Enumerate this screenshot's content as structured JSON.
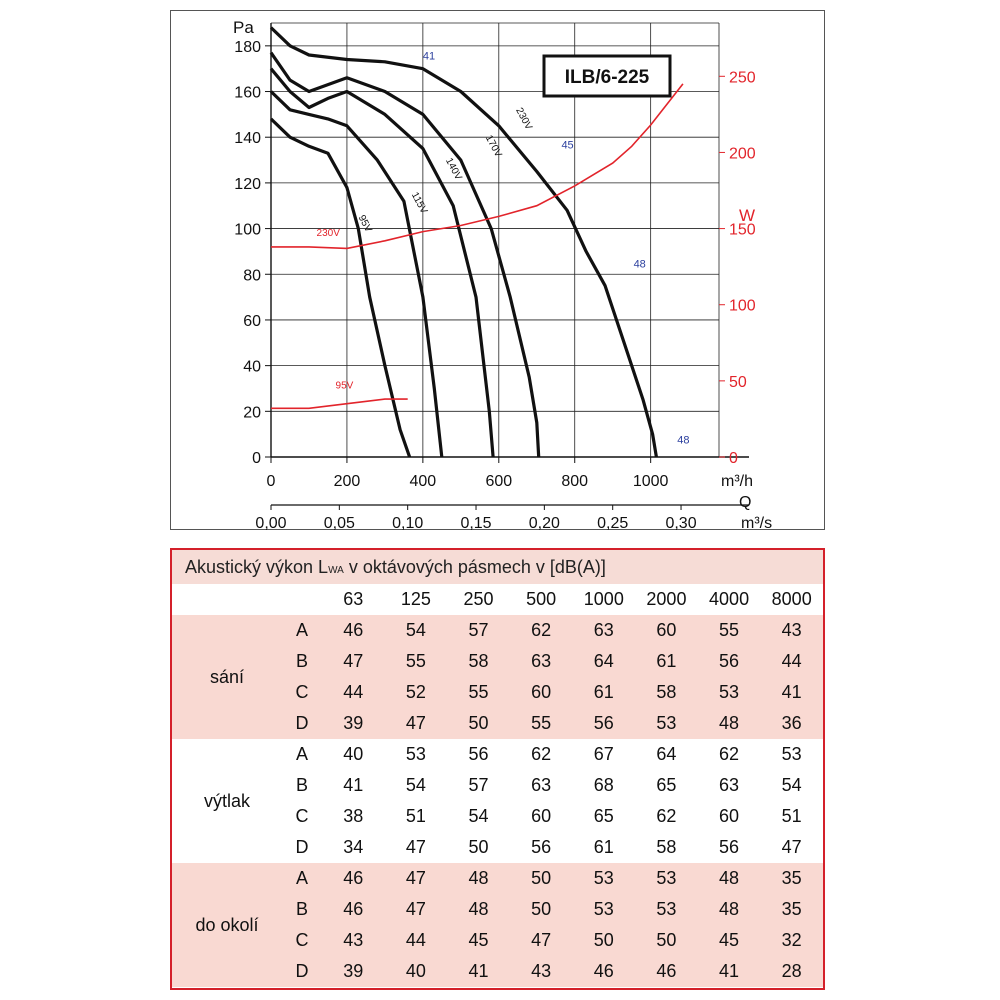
{
  "chart_data": {
    "type": "line",
    "model_label": "ILB/6-225",
    "y_left": {
      "label": "Pa",
      "ticks": [
        0,
        20,
        40,
        60,
        80,
        100,
        120,
        140,
        160,
        180
      ],
      "range": [
        0,
        190
      ]
    },
    "y_right": {
      "label": "W",
      "ticks": [
        0,
        50,
        100,
        150,
        200,
        250
      ],
      "range": [
        0,
        285
      ]
    },
    "x_flow": {
      "unit": "m³/h",
      "ticks": [
        0,
        200,
        400,
        600,
        800,
        1000
      ],
      "range": [
        0,
        1180
      ]
    },
    "x_flow_s": {
      "label": "Q",
      "unit": "m³/s",
      "ticks": [
        "0,00",
        "0,05",
        "0,10",
        "0,15",
        "0,20",
        "0,25",
        "0,30"
      ],
      "tick_values": [
        0,
        0.05,
        0.1,
        0.15,
        0.2,
        0.25,
        0.3
      ]
    },
    "pressure_series": [
      {
        "name": "95V",
        "points": [
          [
            0,
            148
          ],
          [
            50,
            140
          ],
          [
            100,
            136
          ],
          [
            150,
            133
          ],
          [
            200,
            118
          ],
          [
            230,
            100
          ],
          [
            260,
            70
          ],
          [
            300,
            40
          ],
          [
            340,
            12
          ],
          [
            365,
            0
          ]
        ],
        "label_at": [
          230,
          105
        ]
      },
      {
        "name": "115V",
        "points": [
          [
            0,
            160
          ],
          [
            50,
            152
          ],
          [
            100,
            150
          ],
          [
            150,
            148
          ],
          [
            200,
            145
          ],
          [
            280,
            130
          ],
          [
            350,
            112
          ],
          [
            400,
            70
          ],
          [
            430,
            30
          ],
          [
            450,
            0
          ]
        ],
        "label_at": [
          370,
          115
        ]
      },
      {
        "name": "140V",
        "points": [
          [
            0,
            170
          ],
          [
            50,
            160
          ],
          [
            100,
            153
          ],
          [
            150,
            157
          ],
          [
            200,
            160
          ],
          [
            300,
            150
          ],
          [
            400,
            135
          ],
          [
            480,
            110
          ],
          [
            540,
            70
          ],
          [
            575,
            20
          ],
          [
            585,
            0
          ]
        ],
        "label_at": [
          460,
          130
        ]
      },
      {
        "name": "170V",
        "points": [
          [
            0,
            177
          ],
          [
            50,
            165
          ],
          [
            100,
            160
          ],
          [
            200,
            166
          ],
          [
            300,
            160
          ],
          [
            400,
            150
          ],
          [
            500,
            130
          ],
          [
            580,
            100
          ],
          [
            630,
            70
          ],
          [
            680,
            35
          ],
          [
            700,
            15
          ],
          [
            705,
            0
          ]
        ],
        "label_at": [
          565,
          140
        ]
      },
      {
        "name": "230V",
        "points": [
          [
            0,
            188
          ],
          [
            50,
            180
          ],
          [
            100,
            176
          ],
          [
            200,
            174
          ],
          [
            300,
            173
          ],
          [
            400,
            170
          ],
          [
            500,
            160
          ],
          [
            600,
            145
          ],
          [
            700,
            125
          ],
          [
            780,
            108
          ],
          [
            830,
            90
          ],
          [
            880,
            75
          ],
          [
            930,
            50
          ],
          [
            980,
            25
          ],
          [
            1005,
            10
          ],
          [
            1015,
            0
          ]
        ],
        "label_at": [
          645,
          152
        ]
      }
    ],
    "power_series": [
      {
        "name": "230V",
        "points": [
          [
            0,
            138
          ],
          [
            100,
            138
          ],
          [
            200,
            137
          ],
          [
            300,
            142
          ],
          [
            400,
            148
          ],
          [
            500,
            152
          ],
          [
            600,
            158
          ],
          [
            700,
            165
          ],
          [
            800,
            178
          ],
          [
            900,
            193
          ],
          [
            950,
            204
          ],
          [
            1000,
            218
          ]
        ],
        "label_at": [
          120,
          145
        ]
      },
      {
        "name": "95V",
        "points": [
          [
            0,
            32
          ],
          [
            100,
            32
          ],
          [
            200,
            35
          ],
          [
            300,
            38
          ],
          [
            360,
            38
          ]
        ],
        "label_at": [
          170,
          45
        ]
      }
    ],
    "efficiency_labels": [
      {
        "text": "41",
        "at": [
          400,
          174
        ]
      },
      {
        "text": "45",
        "at": [
          765,
          135
        ]
      },
      {
        "text": "48",
        "at": [
          955,
          83
        ]
      },
      {
        "text": "48",
        "at": [
          1070,
          6
        ]
      }
    ]
  },
  "table": {
    "title_prefix": "Akustický výkon L",
    "title_sub": "WA",
    "title_suffix": " v oktávových pásmech v [dB(A)]",
    "bands": [
      "63",
      "125",
      "250",
      "500",
      "1000",
      "2000",
      "4000",
      "8000"
    ],
    "groups": [
      {
        "name": "sání",
        "rows": [
          {
            "key": "A",
            "values": [
              "46",
              "54",
              "57",
              "62",
              "63",
              "60",
              "55",
              "43"
            ]
          },
          {
            "key": "B",
            "values": [
              "47",
              "55",
              "58",
              "63",
              "64",
              "61",
              "56",
              "44"
            ]
          },
          {
            "key": "C",
            "values": [
              "44",
              "52",
              "55",
              "60",
              "61",
              "58",
              "53",
              "41"
            ]
          },
          {
            "key": "D",
            "values": [
              "39",
              "47",
              "50",
              "55",
              "56",
              "53",
              "48",
              "36"
            ]
          }
        ]
      },
      {
        "name": "výtlak",
        "rows": [
          {
            "key": "A",
            "values": [
              "40",
              "53",
              "56",
              "62",
              "67",
              "64",
              "62",
              "53"
            ]
          },
          {
            "key": "B",
            "values": [
              "41",
              "54",
              "57",
              "63",
              "68",
              "65",
              "63",
              "54"
            ]
          },
          {
            "key": "C",
            "values": [
              "38",
              "51",
              "54",
              "60",
              "65",
              "62",
              "60",
              "51"
            ]
          },
          {
            "key": "D",
            "values": [
              "34",
              "47",
              "50",
              "56",
              "61",
              "58",
              "56",
              "47"
            ]
          }
        ]
      },
      {
        "name": "do okolí",
        "rows": [
          {
            "key": "A",
            "values": [
              "46",
              "47",
              "48",
              "50",
              "53",
              "53",
              "48",
              "35"
            ]
          },
          {
            "key": "B",
            "values": [
              "46",
              "47",
              "48",
              "50",
              "53",
              "53",
              "48",
              "35"
            ]
          },
          {
            "key": "C",
            "values": [
              "43",
              "44",
              "45",
              "47",
              "50",
              "50",
              "45",
              "32"
            ]
          },
          {
            "key": "D",
            "values": [
              "39",
              "40",
              "41",
              "43",
              "46",
              "46",
              "41",
              "28"
            ]
          }
        ]
      }
    ]
  },
  "colors": {
    "pressure": "#111111",
    "power": "#e2242b",
    "efficiency": "#2b3f9e",
    "row_shade": "#f9d9d2",
    "border": "#d4202a"
  }
}
